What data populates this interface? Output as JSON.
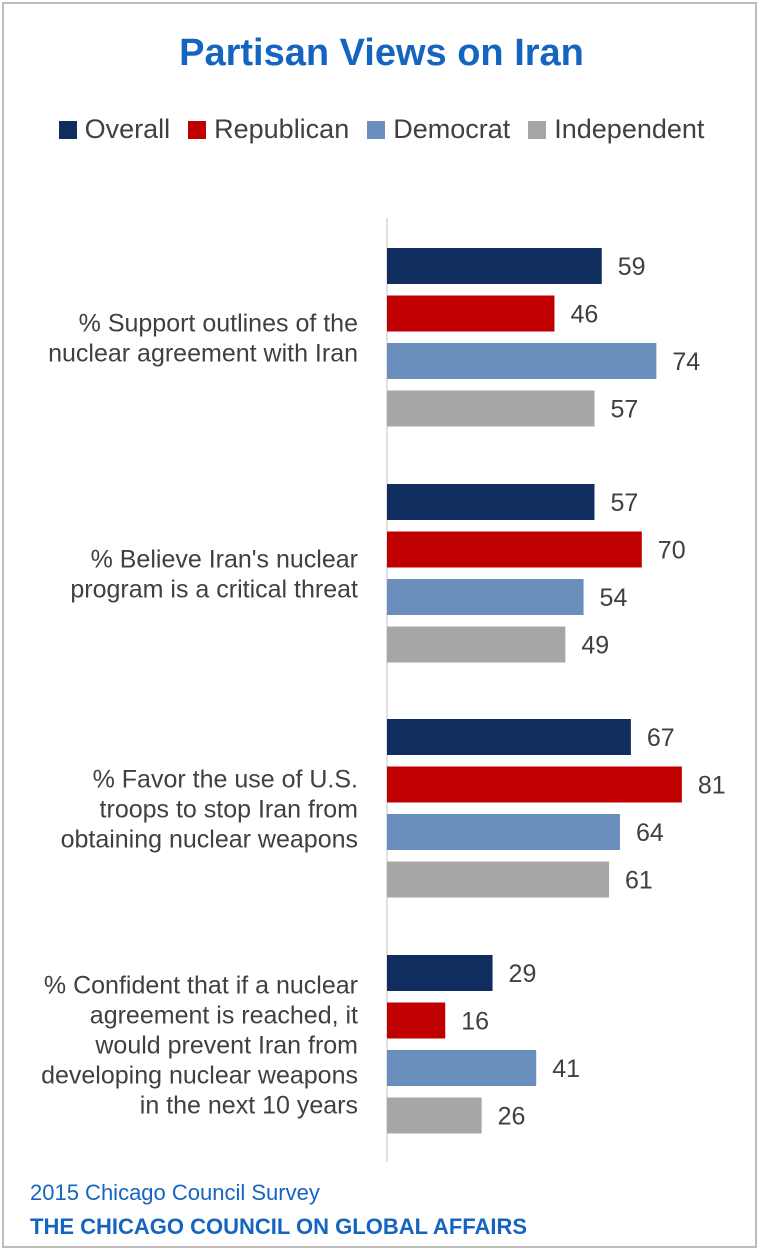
{
  "chart_data": {
    "type": "bar",
    "orientation": "horizontal",
    "title": "Partisan Views on Iran",
    "legend_position": "top",
    "categories": [
      [
        "% Support outlines of the",
        "nuclear agreement with Iran"
      ],
      [
        "% Believe Iran's nuclear",
        "program is a critical threat"
      ],
      [
        "% Favor the use of U.S.",
        "troops to stop Iran from",
        "obtaining nuclear weapons"
      ],
      [
        "% Confident that if a nuclear",
        "agreement is reached, it",
        "would prevent Iran from",
        "developing nuclear weapons",
        "in the next 10 years"
      ]
    ],
    "series": [
      {
        "name": "Overall",
        "color": "#0f2d5e",
        "values": [
          59,
          57,
          67,
          29
        ]
      },
      {
        "name": "Republican",
        "color": "#c00000",
        "values": [
          46,
          70,
          81,
          16
        ]
      },
      {
        "name": "Democrat",
        "color": "#6a8fbd",
        "values": [
          74,
          54,
          64,
          41
        ]
      },
      {
        "name": "Independent",
        "color": "#a6a6a6",
        "values": [
          57,
          49,
          61,
          26
        ]
      }
    ],
    "xlim": [
      0,
      100
    ],
    "grid": false
  },
  "footer": {
    "source": "2015 Chicago Council Survey",
    "organization": "THE CHICAGO COUNCIL ON GLOBAL AFFAIRS"
  }
}
